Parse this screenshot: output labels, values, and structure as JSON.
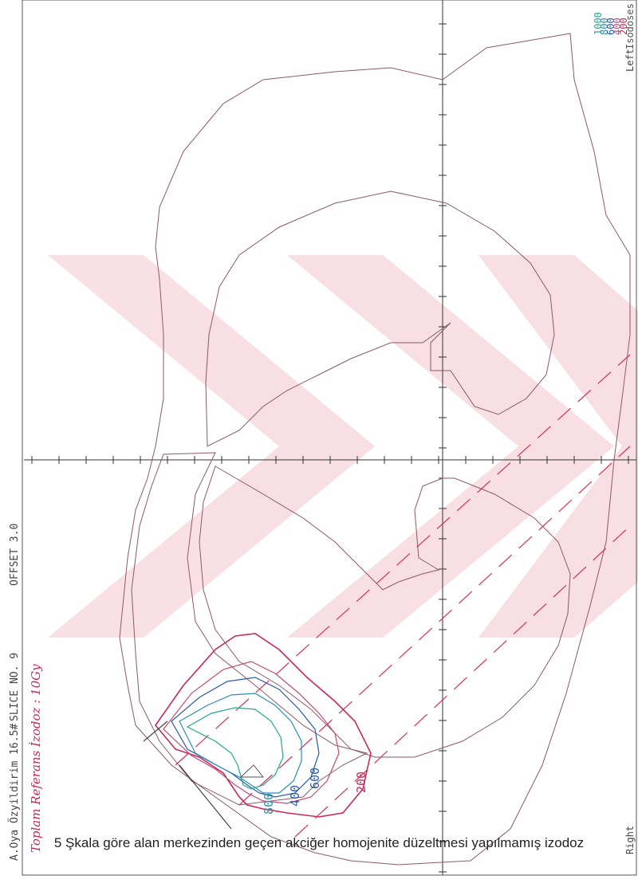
{
  "header": {
    "patient": "A.Oya Özyildirim 16.5#",
    "slice": "SLICE NO. 9",
    "offset": "OFFSET  3.0"
  },
  "isodoses_legend": {
    "title": "Isodoses",
    "levels": [
      "1000",
      "800",
      "600",
      "400",
      "200"
    ]
  },
  "orientation": {
    "left": "Left",
    "right": "Right"
  },
  "handwritten_note": "Toplam Referans İzodoz : 10Gy",
  "contour_labels": [
    "800",
    "400",
    "600",
    "200"
  ],
  "caption": "5 Şkala göre alan merkezinden geçen akciğer homojenite düzeltmesi yapılmamış izodoz",
  "colors": {
    "i1000": "#22a98c",
    "i800": "#2b8fb0",
    "i600": "#2a5aa8",
    "i400": "#c04a78",
    "i200": "#c8285a",
    "outline": "#8a5a6a",
    "beam": "#d8305a"
  }
}
